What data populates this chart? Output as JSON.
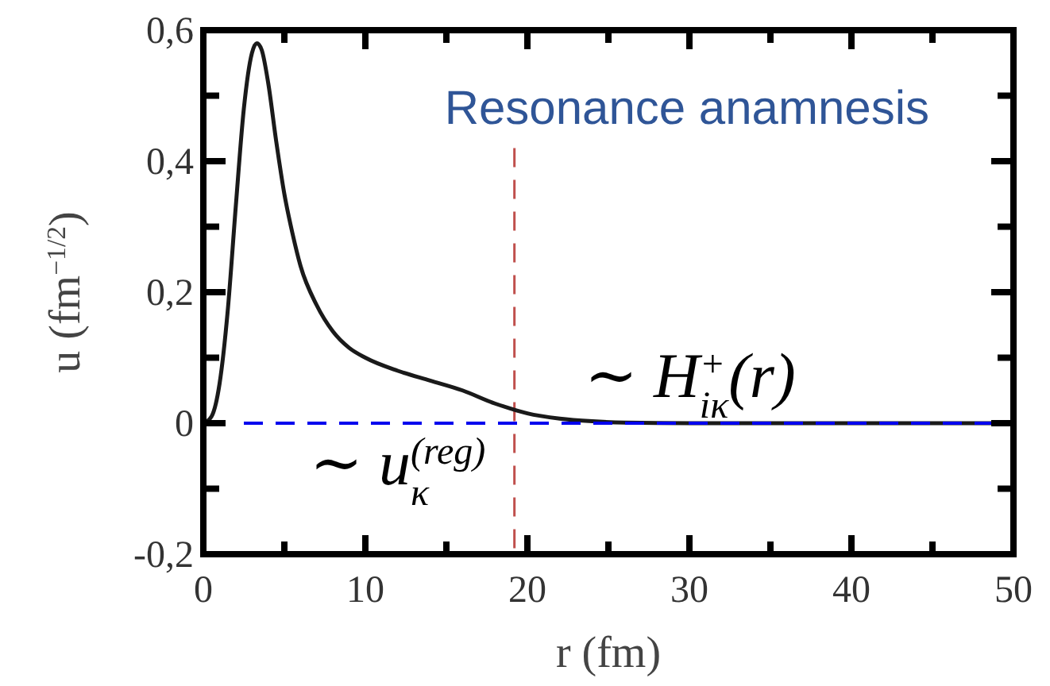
{
  "chart_data": {
    "type": "line",
    "title": "Resonance anamnesis",
    "xlabel": "r (fm)",
    "ylabel": "u (fm$^{−1/2}$)",
    "annotations": [
      "∼ H$^{+}$$_{iκ}$(r)",
      "∼ u$^{(reg)}$$_{κ}$"
    ],
    "xlim": [
      0,
      50
    ],
    "ylim": [
      -0.2,
      0.6
    ],
    "xticks": [
      0,
      {
        "value": 5,
        "label": null
      },
      10,
      {
        "value": 15,
        "label": null
      },
      20,
      {
        "value": 25,
        "label": null
      },
      30,
      {
        "value": 35,
        "label": null
      },
      40,
      {
        "value": 45,
        "label": null
      },
      50
    ],
    "yticks": [
      {
        "value": -0.2,
        "label": "-0,2"
      },
      {
        "value": -0.1,
        "label": null
      },
      0,
      {
        "value": 0.1,
        "label": null
      },
      {
        "value": 0.2,
        "label": "0,2"
      },
      {
        "value": 0.3,
        "label": null
      },
      {
        "value": 0.4,
        "label": "0,4"
      },
      {
        "value": 0.5,
        "label": null
      },
      {
        "value": 0.6,
        "label": "0,6"
      }
    ],
    "grid": false,
    "marker": "none",
    "series": [
      {
        "color": "#1a1a1a",
        "line_style": "solid",
        "x": [
          0,
          0.5,
          1,
          1.5,
          2,
          2.5,
          3,
          3.3,
          3.6,
          4,
          4.5,
          5,
          5.5,
          6,
          7,
          8,
          9,
          10,
          12,
          14,
          16,
          18,
          19,
          20,
          22,
          24,
          26,
          30,
          40,
          50
        ],
        "values": [
          0,
          0.01,
          0.06,
          0.17,
          0.33,
          0.48,
          0.565,
          0.58,
          0.57,
          0.52,
          0.43,
          0.35,
          0.29,
          0.24,
          0.18,
          0.14,
          0.115,
          0.1,
          0.08,
          0.065,
          0.05,
          0.03,
          0.022,
          0.015,
          0.007,
          0.003,
          0.001,
          0,
          0,
          0
        ]
      },
      {
        "color": "#0000ee",
        "line_style": "dashed",
        "x": [
          2.5,
          50
        ],
        "values": [
          0,
          0
        ]
      }
    ],
    "ref_lines": [
      {
        "axis": "x",
        "value": 19.2,
        "color": "#c0504d",
        "line_style": "dashed"
      }
    ]
  }
}
